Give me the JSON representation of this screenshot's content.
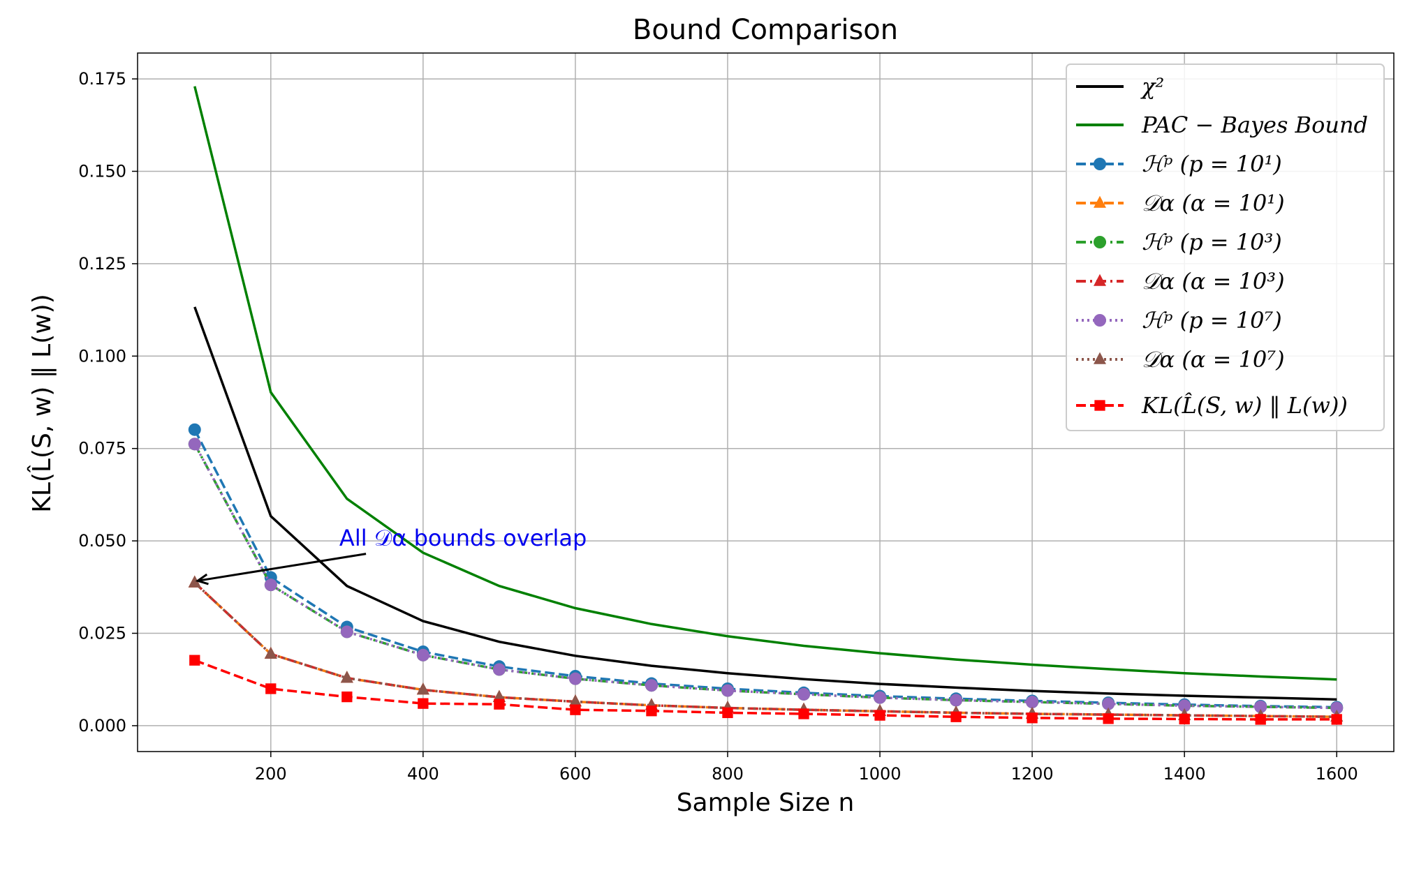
{
  "chart_data": {
    "type": "line",
    "title": "Bound Comparison",
    "xlabel": "Sample Size n",
    "ylabel": "KL(L̂(S, w) ‖ L(w))",
    "xlim": [
      25,
      1675
    ],
    "ylim": [
      -0.007,
      0.182
    ],
    "xticks": [
      200,
      400,
      600,
      800,
      1000,
      1200,
      1400,
      1600
    ],
    "yticks": [
      0.0,
      0.025,
      0.05,
      0.075,
      0.1,
      0.125,
      0.15,
      0.175
    ],
    "ytick_labels": [
      "0.000",
      "0.025",
      "0.050",
      "0.075",
      "0.100",
      "0.125",
      "0.150",
      "0.175"
    ],
    "grid": true,
    "legend_position": "top-right",
    "x": [
      100,
      200,
      300,
      400,
      500,
      600,
      700,
      800,
      900,
      1000,
      1100,
      1200,
      1300,
      1400,
      1500,
      1600
    ],
    "series": [
      {
        "name": "χ²",
        "color": "#000000",
        "dash": "solid",
        "marker": "none",
        "values": [
          0.1133,
          0.0567,
          0.0378,
          0.0283,
          0.0227,
          0.0189,
          0.0162,
          0.0142,
          0.0126,
          0.0113,
          0.0103,
          0.0094,
          0.0087,
          0.0081,
          0.0076,
          0.0071
        ]
      },
      {
        "name": "PAC − Bayes Bound",
        "color": "#008000",
        "dash": "solid",
        "marker": "none",
        "values": [
          0.173,
          0.0902,
          0.0614,
          0.0468,
          0.0378,
          0.0318,
          0.0275,
          0.0242,
          0.0216,
          0.0196,
          0.0179,
          0.0165,
          0.0153,
          0.0142,
          0.0133,
          0.0125
        ]
      },
      {
        "name": "ℋᵖ (p = 10¹)",
        "color": "#1f77b4",
        "dash": "dashed",
        "marker": "circle",
        "values": [
          0.0801,
          0.0401,
          0.0267,
          0.02,
          0.016,
          0.0134,
          0.0114,
          0.01,
          0.0089,
          0.008,
          0.0073,
          0.0067,
          0.0062,
          0.0057,
          0.0053,
          0.005
        ]
      },
      {
        "name": "𝒟α (α = 10¹)",
        "color": "#ff7f0e",
        "dash": "dashed",
        "marker": "triangle",
        "values": [
          0.0387,
          0.0194,
          0.0129,
          0.0097,
          0.0077,
          0.0065,
          0.0055,
          0.0048,
          0.0043,
          0.0039,
          0.0035,
          0.0032,
          0.003,
          0.0028,
          0.0026,
          0.0024
        ]
      },
      {
        "name": "ℋᵖ (p = 10³)",
        "color": "#2ca02c",
        "dash": "dashdot",
        "marker": "circle",
        "values": [
          0.0762,
          0.0381,
          0.0254,
          0.0191,
          0.0152,
          0.0127,
          0.0109,
          0.0095,
          0.0085,
          0.0076,
          0.0069,
          0.0064,
          0.0059,
          0.0054,
          0.0051,
          0.0048
        ]
      },
      {
        "name": "𝒟α (α = 10³)",
        "color": "#d62728",
        "dash": "dashdot",
        "marker": "triangle",
        "values": [
          0.0387,
          0.0194,
          0.0129,
          0.0097,
          0.0077,
          0.0065,
          0.0055,
          0.0048,
          0.0043,
          0.0039,
          0.0035,
          0.0032,
          0.003,
          0.0028,
          0.0026,
          0.0024
        ]
      },
      {
        "name": "ℋᵖ (p = 10⁷)",
        "color": "#9467bd",
        "dash": "dotted",
        "marker": "circle",
        "values": [
          0.0762,
          0.0381,
          0.0254,
          0.0191,
          0.0152,
          0.0127,
          0.0109,
          0.0095,
          0.0085,
          0.0076,
          0.0069,
          0.0064,
          0.0059,
          0.0054,
          0.0051,
          0.0048
        ]
      },
      {
        "name": "𝒟α (α = 10⁷)",
        "color": "#8c564b",
        "dash": "dotted",
        "marker": "triangle",
        "values": [
          0.0387,
          0.0194,
          0.0129,
          0.0097,
          0.0077,
          0.0065,
          0.0055,
          0.0048,
          0.0043,
          0.0039,
          0.0035,
          0.0032,
          0.003,
          0.0028,
          0.0026,
          0.0024
        ]
      },
      {
        "name": "KL(L̂(S, w) ‖ L(w))",
        "color": "#ff0000",
        "dash": "dashed",
        "marker": "square",
        "values": [
          0.0177,
          0.01,
          0.0078,
          0.006,
          0.0058,
          0.0043,
          0.004,
          0.0035,
          0.0032,
          0.0028,
          0.0024,
          0.0021,
          0.0019,
          0.0018,
          0.0017,
          0.0017
        ]
      }
    ],
    "annotation": {
      "text": "All 𝒟α bounds overlap",
      "color": "#0000ee",
      "arrow_tail": [
        325,
        0.0465
      ],
      "arrow_head": [
        104,
        0.0392
      ],
      "text_anchor": [
        290,
        0.0487
      ]
    }
  }
}
